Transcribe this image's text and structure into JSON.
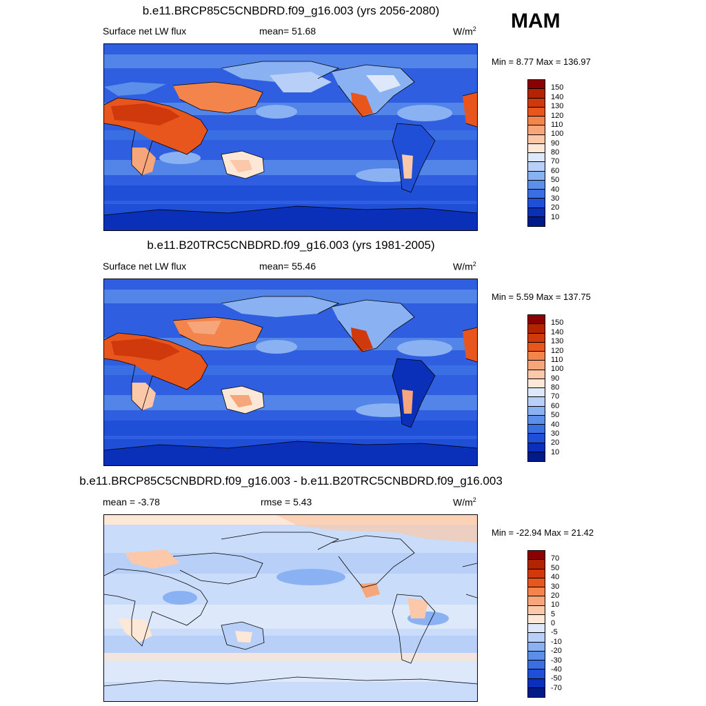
{
  "season": "MAM",
  "panels": [
    {
      "title": "b.e11.BRCP85C5CNBDRD.f09_g16.003 (yrs 2056-2080)",
      "left_label": "Surface net LW flux",
      "mid_label": "mean=  51.68",
      "units": "W/m",
      "units_sup": "2",
      "minmax": "Min =   8.77 Max = 136.97",
      "levels": [
        "150",
        "140",
        "130",
        "120",
        "110",
        "100",
        "90",
        "80",
        "70",
        "60",
        "50",
        "40",
        "30",
        "20",
        "10"
      ],
      "colors": [
        "#8b0000",
        "#b22300",
        "#d0390b",
        "#e8551d",
        "#f2844c",
        "#f7a67c",
        "#fbc9aa",
        "#fde7d6",
        "#dde9fb",
        "#b8d0f7",
        "#8ab1f1",
        "#5b8fe9",
        "#3a6fe3",
        "#1e4fd6",
        "#0a2fb8",
        "#001a8a"
      ],
      "map_base": "#2f5fe0"
    },
    {
      "title": "b.e11.B20TRC5CNBDRD.f09_g16.003 (yrs 1981-2005)",
      "left_label": "Surface net LW flux",
      "mid_label": "mean=  55.46",
      "units": "W/m",
      "units_sup": "2",
      "minmax": "Min =   5.59 Max = 137.75",
      "levels": [
        "150",
        "140",
        "130",
        "120",
        "110",
        "100",
        "90",
        "80",
        "70",
        "60",
        "50",
        "40",
        "30",
        "20",
        "10"
      ],
      "colors": [
        "#8b0000",
        "#b22300",
        "#d0390b",
        "#e8551d",
        "#f2844c",
        "#f7a67c",
        "#fbc9aa",
        "#fde7d6",
        "#dde9fb",
        "#b8d0f7",
        "#8ab1f1",
        "#5b8fe9",
        "#3a6fe3",
        "#1e4fd6",
        "#0a2fb8",
        "#001a8a"
      ],
      "map_base": "#2f5fe0"
    },
    {
      "title": "b.e11.BRCP85C5CNBDRD.f09_g16.003 - b.e11.B20TRC5CNBDRD.f09_g16.003",
      "left_label": "mean =  -3.78",
      "mid_label": "rmse =   5.43",
      "units": "W/m",
      "units_sup": "2",
      "minmax": "Min = -22.94 Max =  21.42",
      "levels": [
        "70",
        "50",
        "40",
        "30",
        "20",
        "10",
        "5",
        "0",
        "-5",
        "-10",
        "-20",
        "-30",
        "-40",
        "-50",
        "-70"
      ],
      "colors": [
        "#8b0000",
        "#b22300",
        "#d0390b",
        "#e8551d",
        "#f2844c",
        "#f7a67c",
        "#fbc9aa",
        "#fde7d6",
        "#dde9fb",
        "#b8d0f7",
        "#8ab1f1",
        "#5b8fe9",
        "#3a6fe3",
        "#1e4fd6",
        "#0a2fb8",
        "#001a8a"
      ],
      "map_base": "#c9dcf9"
    }
  ]
}
